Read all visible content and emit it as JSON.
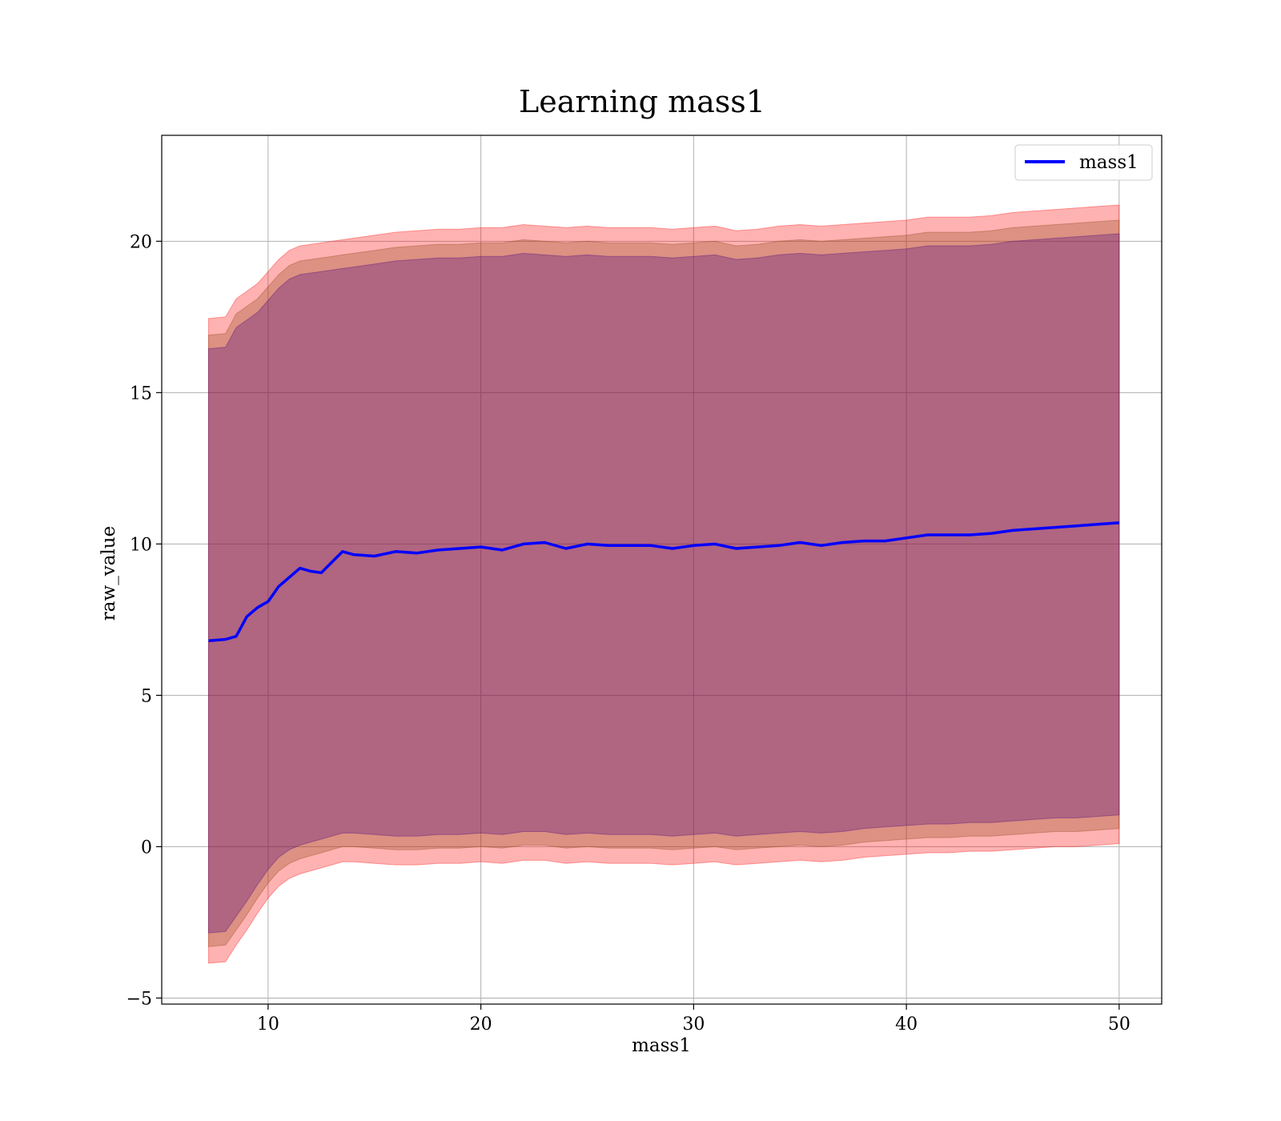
{
  "chart_data": {
    "type": "line",
    "title": "Learning mass1",
    "xlabel": "mass1",
    "ylabel": "raw_value",
    "xlim": [
      5,
      52
    ],
    "ylim": [
      -5.2,
      23.5
    ],
    "xticks": [
      10,
      20,
      30,
      40,
      50
    ],
    "yticks": [
      -5,
      0,
      5,
      10,
      15,
      20
    ],
    "xtick_labels": [
      "10",
      "20",
      "30",
      "40",
      "50"
    ],
    "ytick_labels": [
      "−5",
      "0",
      "5",
      "10",
      "15",
      "20"
    ],
    "grid": true,
    "legend": {
      "placement": "top-right",
      "entries": [
        "mass1"
      ]
    },
    "colors": {
      "line": "#0000ff",
      "band_outer": "#ff0000",
      "band_middle": "#8b4513",
      "band_inner": "#4b0082"
    },
    "series": [
      {
        "name": "mass1",
        "x": [
          7.2,
          8.0,
          8.5,
          9.0,
          9.5,
          10.0,
          10.5,
          11.0,
          11.5,
          12.0,
          12.5,
          13.0,
          13.5,
          14.0,
          15.0,
          16.0,
          17.0,
          18.0,
          19.0,
          20.0,
          21.0,
          22.0,
          23.0,
          24.0,
          25.0,
          26.0,
          27.0,
          28.0,
          29.0,
          30.0,
          31.0,
          32.0,
          33.0,
          34.0,
          35.0,
          36.0,
          37.0,
          38.0,
          39.0,
          40.0,
          41.0,
          42.0,
          43.0,
          44.0,
          45.0,
          46.0,
          47.0,
          48.0,
          49.0,
          50.0
        ],
        "y": [
          6.8,
          6.85,
          6.95,
          7.6,
          7.9,
          8.1,
          8.6,
          8.9,
          9.2,
          9.1,
          9.05,
          9.4,
          9.75,
          9.65,
          9.6,
          9.75,
          9.7,
          9.8,
          9.85,
          9.9,
          9.8,
          10.0,
          10.05,
          9.85,
          10.0,
          9.95,
          9.95,
          9.95,
          9.85,
          9.95,
          10.0,
          9.85,
          9.9,
          9.95,
          10.05,
          9.95,
          10.05,
          10.1,
          10.1,
          10.2,
          10.3,
          10.3,
          10.3,
          10.35,
          10.45,
          10.5,
          10.55,
          10.6,
          10.65,
          10.7
        ]
      }
    ],
    "bands": [
      {
        "upper": [
          17.45,
          17.5,
          18.1,
          18.35,
          18.6,
          19.0,
          19.4,
          19.7,
          19.85,
          19.9,
          19.95,
          20.0,
          20.05,
          20.1,
          20.2,
          20.3,
          20.35,
          20.4,
          20.4,
          20.45,
          20.45,
          20.55,
          20.5,
          20.45,
          20.5,
          20.45,
          20.45,
          20.45,
          20.4,
          20.45,
          20.5,
          20.35,
          20.4,
          20.5,
          20.55,
          20.5,
          20.55,
          20.6,
          20.65,
          20.7,
          20.8,
          20.8,
          20.8,
          20.85,
          20.95,
          21.0,
          21.05,
          21.1,
          21.15,
          21.2
        ],
        "lower": [
          -3.85,
          -3.8,
          -3.25,
          -2.75,
          -2.2,
          -1.7,
          -1.3,
          -1.05,
          -0.9,
          -0.8,
          -0.7,
          -0.6,
          -0.5,
          -0.5,
          -0.55,
          -0.6,
          -0.6,
          -0.55,
          -0.55,
          -0.5,
          -0.55,
          -0.45,
          -0.45,
          -0.55,
          -0.5,
          -0.55,
          -0.55,
          -0.55,
          -0.6,
          -0.55,
          -0.5,
          -0.6,
          -0.55,
          -0.5,
          -0.45,
          -0.5,
          -0.45,
          -0.35,
          -0.3,
          -0.25,
          -0.2,
          -0.2,
          -0.15,
          -0.15,
          -0.1,
          -0.05,
          0.0,
          0.0,
          0.05,
          0.1
        ]
      },
      {
        "upper": [
          16.9,
          16.95,
          17.6,
          17.85,
          18.1,
          18.5,
          18.9,
          19.2,
          19.35,
          19.4,
          19.45,
          19.5,
          19.55,
          19.6,
          19.7,
          19.8,
          19.85,
          19.9,
          19.9,
          19.95,
          19.95,
          20.05,
          20.0,
          19.95,
          20.0,
          19.95,
          19.95,
          19.95,
          19.9,
          19.95,
          20.0,
          19.85,
          19.9,
          20.0,
          20.05,
          20.0,
          20.05,
          20.1,
          20.15,
          20.2,
          20.3,
          20.3,
          20.3,
          20.35,
          20.45,
          20.5,
          20.55,
          20.6,
          20.65,
          20.7
        ],
        "lower": [
          -3.3,
          -3.25,
          -2.75,
          -2.25,
          -1.7,
          -1.2,
          -0.8,
          -0.55,
          -0.4,
          -0.3,
          -0.2,
          -0.1,
          0.0,
          0.0,
          -0.05,
          -0.1,
          -0.1,
          -0.05,
          -0.05,
          0.0,
          -0.05,
          0.05,
          0.05,
          -0.05,
          0.0,
          -0.05,
          -0.05,
          -0.05,
          -0.1,
          -0.05,
          0.0,
          -0.1,
          -0.05,
          0.0,
          0.05,
          0.0,
          0.05,
          0.15,
          0.2,
          0.25,
          0.3,
          0.3,
          0.35,
          0.35,
          0.4,
          0.45,
          0.5,
          0.5,
          0.55,
          0.6
        ]
      },
      {
        "upper": [
          16.45,
          16.5,
          17.15,
          17.4,
          17.65,
          18.05,
          18.45,
          18.75,
          18.9,
          18.95,
          19.0,
          19.05,
          19.1,
          19.15,
          19.25,
          19.35,
          19.4,
          19.45,
          19.45,
          19.5,
          19.5,
          19.6,
          19.55,
          19.5,
          19.55,
          19.5,
          19.5,
          19.5,
          19.45,
          19.5,
          19.55,
          19.4,
          19.45,
          19.55,
          19.6,
          19.55,
          19.6,
          19.65,
          19.7,
          19.75,
          19.85,
          19.85,
          19.85,
          19.9,
          20.0,
          20.05,
          20.1,
          20.15,
          20.2,
          20.25
        ],
        "lower": [
          -2.85,
          -2.8,
          -2.3,
          -1.8,
          -1.25,
          -0.75,
          -0.35,
          -0.1,
          0.05,
          0.15,
          0.25,
          0.35,
          0.45,
          0.45,
          0.4,
          0.35,
          0.35,
          0.4,
          0.4,
          0.45,
          0.4,
          0.5,
          0.5,
          0.4,
          0.45,
          0.4,
          0.4,
          0.4,
          0.35,
          0.4,
          0.45,
          0.35,
          0.4,
          0.45,
          0.5,
          0.45,
          0.5,
          0.6,
          0.65,
          0.7,
          0.75,
          0.75,
          0.8,
          0.8,
          0.85,
          0.9,
          0.95,
          0.95,
          1.0,
          1.05
        ]
      }
    ]
  }
}
